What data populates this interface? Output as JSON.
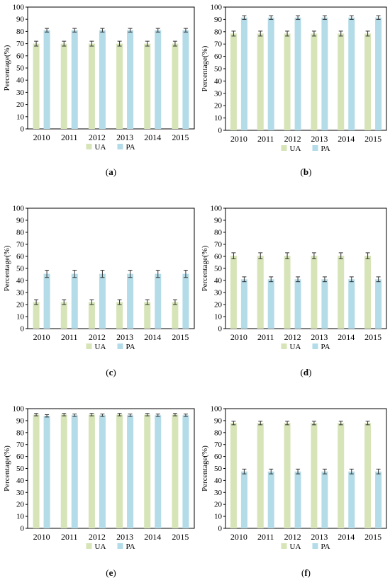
{
  "colors": {
    "ua": "#d6e4b8",
    "pa": "#b3dbe8",
    "error_bar": "#333333",
    "axis": "#000000"
  },
  "chart_data": [
    {
      "type": "bar",
      "panel_label": "(a)",
      "ylabel": "Percentage(%)",
      "ylim": [
        0,
        100
      ],
      "ytick_step": 10,
      "categories": [
        "2010",
        "2011",
        "2012",
        "2013",
        "2014",
        "2015"
      ],
      "series": [
        {
          "name": "UA",
          "values": [
            70,
            70,
            70,
            70,
            70,
            70
          ],
          "error": [
            2,
            2,
            2,
            2,
            2,
            2
          ]
        },
        {
          "name": "PA",
          "values": [
            81,
            81,
            81,
            81,
            81,
            81
          ],
          "error": [
            1.5,
            1.5,
            1.5,
            1.5,
            1.5,
            1.5
          ]
        }
      ],
      "legend": "bottom"
    },
    {
      "type": "bar",
      "panel_label": "(b)",
      "ylabel": "Percentage(%)",
      "ylim": [
        0,
        100
      ],
      "ytick_step": 10,
      "categories": [
        "2010",
        "2011",
        "2012",
        "2013",
        "2014",
        "2015"
      ],
      "series": [
        {
          "name": "UA",
          "values": [
            78.5,
            78.5,
            78.5,
            78.5,
            78.5,
            78.5
          ],
          "error": [
            2,
            2,
            2,
            2,
            2,
            2
          ]
        },
        {
          "name": "PA",
          "values": [
            91.5,
            91.5,
            91.5,
            91.5,
            91.5,
            91.5
          ],
          "error": [
            1.5,
            1.5,
            1.5,
            1.5,
            1.5,
            1.5
          ]
        }
      ],
      "legend": "bottom"
    },
    {
      "type": "bar",
      "panel_label": "(c)",
      "ylabel": "Percentage(%)",
      "ylim": [
        0,
        100
      ],
      "ytick_step": 10,
      "categories": [
        "2010",
        "2011",
        "2012",
        "2013",
        "2014",
        "2015"
      ],
      "series": [
        {
          "name": "UA",
          "values": [
            22,
            22,
            22,
            22,
            22,
            22
          ],
          "error": [
            2,
            2,
            2,
            2,
            2,
            2
          ]
        },
        {
          "name": "PA",
          "values": [
            45.5,
            45.5,
            45.5,
            45.5,
            45.5,
            45.5
          ],
          "error": [
            3,
            3,
            3,
            3,
            3,
            3
          ]
        }
      ],
      "legend": "bottom"
    },
    {
      "type": "bar",
      "panel_label": "(d)",
      "ylabel": "Percentage(%)",
      "ylim": [
        0,
        100
      ],
      "ytick_step": 10,
      "categories": [
        "2010",
        "2011",
        "2012",
        "2013",
        "2014",
        "2015"
      ],
      "series": [
        {
          "name": "UA",
          "values": [
            60.5,
            60.5,
            60.5,
            60.5,
            60.5,
            60.5
          ],
          "error": [
            2.5,
            2.5,
            2.5,
            2.5,
            2.5,
            2.5
          ]
        },
        {
          "name": "PA",
          "values": [
            41,
            41,
            41,
            41,
            41,
            41
          ],
          "error": [
            2,
            2,
            2,
            2,
            2,
            2
          ]
        }
      ],
      "legend": "bottom"
    },
    {
      "type": "bar",
      "panel_label": "(e)",
      "ylabel": "Percentage(%)",
      "ylim": [
        0,
        100
      ],
      "ytick_step": 10,
      "categories": [
        "2010",
        "2011",
        "2012",
        "2013",
        "2014",
        "2015"
      ],
      "series": [
        {
          "name": "UA",
          "values": [
            95,
            95,
            95,
            95,
            95,
            95
          ],
          "error": [
            1,
            1,
            1,
            1,
            1,
            1
          ]
        },
        {
          "name": "PA",
          "values": [
            94,
            94.5,
            94.5,
            94.5,
            94.5,
            94.5
          ],
          "error": [
            1,
            1,
            1,
            1,
            1,
            1
          ]
        }
      ],
      "legend": "bottom"
    },
    {
      "type": "bar",
      "panel_label": "(f)",
      "ylabel": "Percentage(%)",
      "ylim": [
        0,
        100
      ],
      "ytick_step": 10,
      "categories": [
        "2010",
        "2011",
        "2012",
        "2013",
        "2014",
        "2015"
      ],
      "series": [
        {
          "name": "UA",
          "values": [
            88,
            88,
            88,
            88,
            88,
            88
          ],
          "error": [
            1.5,
            1.5,
            1.5,
            1.5,
            1.5,
            1.5
          ]
        },
        {
          "name": "PA",
          "values": [
            47.5,
            47.5,
            47.5,
            47.5,
            47.5,
            47.5
          ],
          "error": [
            2,
            2,
            2,
            2,
            2,
            2
          ]
        }
      ],
      "legend": "bottom"
    }
  ]
}
